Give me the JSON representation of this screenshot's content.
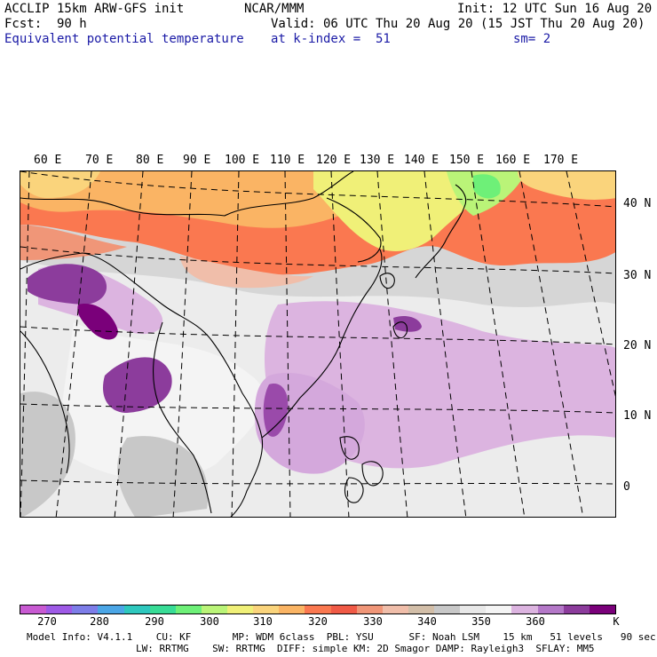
{
  "header": {
    "model": "ACCLIP 15km ARW-GFS init",
    "org": "NCAR/MMM",
    "init": "Init: 12 UTC Sun 16 Aug 20",
    "fcst_label": "Fcst:",
    "fcst_value": "90 h",
    "valid": "Valid: 06 UTC Thu 20 Aug 20 (15 JST Thu 20 Aug 20)",
    "field": "Equivalent potential temperature",
    "level": "at k-index =  51",
    "smooth": "sm= 2"
  },
  "map": {
    "lon_labels": [
      "60 E",
      "70 E",
      "80 E",
      "90 E",
      "100 E",
      "110 E",
      "120 E",
      "130 E",
      "140 E",
      "150 E",
      "160 E",
      "170 E"
    ],
    "lat_labels": [
      "40 N",
      "30 N",
      "20 N",
      "10 N",
      "0"
    ]
  },
  "colorbar": {
    "colors": [
      "#c85ad2",
      "#9e5ae6",
      "#7d7de8",
      "#4ba6e6",
      "#2ec8be",
      "#38dc96",
      "#6ef078",
      "#baf478",
      "#f0f078",
      "#fad47c",
      "#fab464",
      "#fa7850",
      "#f05a46",
      "#f09678",
      "#f0beaa",
      "#d2bea8",
      "#c8c8c8",
      "#e8e8e8",
      "#f4f4f4",
      "#dcb4e0",
      "#b478c8",
      "#8c3c9c",
      "#7a007a"
    ],
    "ticks": [
      "270",
      "280",
      "290",
      "300",
      "310",
      "320",
      "330",
      "340",
      "350",
      "360"
    ],
    "unit": "K"
  },
  "model_info": {
    "line1": "Model Info: V4.1.1    CU: KF       MP: WDM 6class  PBL: YSU      SF: Noah LSM    15 km   51 levels   90 sec",
    "line2": "LW: RRTMG    SW: RRTMG  DIFF: simple KM: 2D Smagor DAMP: Rayleigh3  SFLAY: MM5"
  }
}
